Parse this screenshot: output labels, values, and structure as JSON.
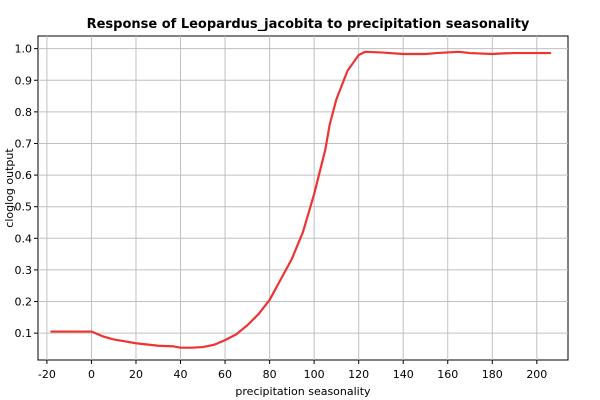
{
  "chart_data": {
    "type": "line",
    "title": "Response of Leopardus_jacobita to precipitation seasonality",
    "xlabel": "precipitation seasonality",
    "ylabel": "cloglog output",
    "xlim": [
      -24,
      214
    ],
    "ylim": [
      0.015,
      1.04
    ],
    "x_ticks": [
      -20,
      0,
      20,
      40,
      60,
      80,
      100,
      120,
      140,
      160,
      180,
      200
    ],
    "y_ticks": [
      0.1,
      0.2,
      0.3,
      0.4,
      0.5,
      0.6,
      0.7,
      0.8,
      0.9,
      1.0
    ],
    "x_tick_labels": [
      "-20",
      "0",
      "20",
      "40",
      "60",
      "80",
      "100",
      "120",
      "140",
      "160",
      "180",
      "200"
    ],
    "y_tick_labels": [
      "0.1",
      "0.2",
      "0.3",
      "0.4",
      "0.5",
      "0.6",
      "0.7",
      "0.8",
      "0.9",
      "1.0"
    ],
    "grid": true,
    "series": [
      {
        "color": "#ee3333",
        "x": [
          -18,
          0,
          5,
          10,
          20,
          30,
          37,
          40,
          45,
          50,
          55,
          60,
          65,
          70,
          75,
          80,
          85,
          90,
          95,
          100,
          105,
          107,
          110,
          115,
          120,
          123,
          130,
          140,
          150,
          155,
          160,
          165,
          170,
          180,
          185,
          190,
          200,
          206
        ],
        "y": [
          0.105,
          0.105,
          0.09,
          0.08,
          0.068,
          0.06,
          0.058,
          0.054,
          0.054,
          0.056,
          0.063,
          0.078,
          0.096,
          0.125,
          0.16,
          0.205,
          0.27,
          0.335,
          0.42,
          0.54,
          0.68,
          0.76,
          0.84,
          0.93,
          0.98,
          0.99,
          0.988,
          0.983,
          0.983,
          0.986,
          0.988,
          0.99,
          0.986,
          0.983,
          0.985,
          0.986,
          0.986,
          0.986
        ]
      }
    ]
  }
}
